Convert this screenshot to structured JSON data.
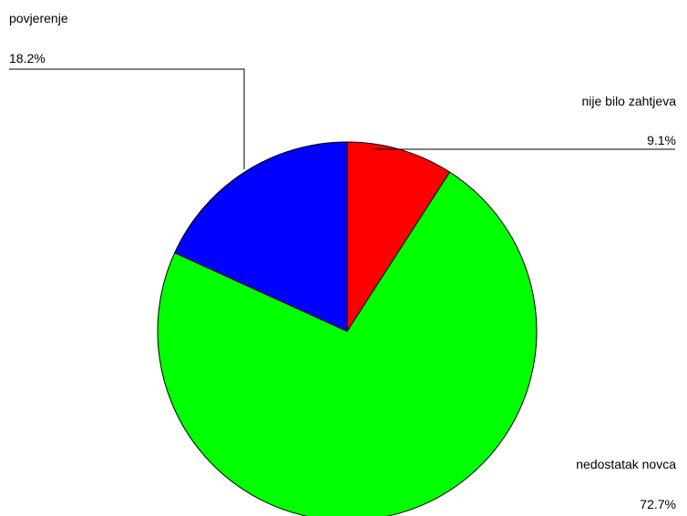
{
  "chart_data": {
    "type": "pie",
    "title": "",
    "slices": [
      {
        "label": "nije bilo zahtjeva",
        "value": 9.1,
        "value_label": "9.1%",
        "color": "#ff0000"
      },
      {
        "label": "nedostatak novca",
        "value": 72.7,
        "value_label": "72.7%",
        "color": "#00ff00"
      },
      {
        "label": "povjerenje",
        "value": 18.2,
        "value_label": "18.2%",
        "color": "#0000ff"
      }
    ],
    "start": "12 o'clock",
    "direction": "clockwise",
    "legend": "none",
    "outline_color": "#000000"
  }
}
